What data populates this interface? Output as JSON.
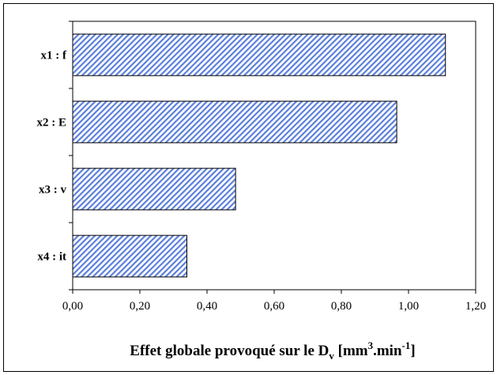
{
  "chart_data": {
    "type": "bar",
    "orientation": "horizontal",
    "categories": [
      "x1 : f",
      "x2 : E",
      "x3 : v",
      "x4 : it"
    ],
    "values": [
      1.11,
      0.965,
      0.485,
      0.34
    ],
    "xlim": [
      0,
      1.2
    ],
    "xticks": [
      "0,00",
      "0,20",
      "0,40",
      "0,60",
      "0,80",
      "1,00",
      "1,20"
    ],
    "xtick_values": [
      0,
      0.2,
      0.4,
      0.6,
      0.8,
      1.0,
      1.2
    ],
    "xlabel": {
      "main": "Effet globale provoqué sur le D",
      "subscript_v": "v",
      "bracket_open": " [mm",
      "sup_3": "3",
      "middle": ".min",
      "sup_neg1": "-1",
      "bracket_close": "]"
    },
    "grid": false,
    "legend": "none",
    "bar_fill": "#5b7fd9",
    "bar_pattern": "diagonal-hatch"
  }
}
